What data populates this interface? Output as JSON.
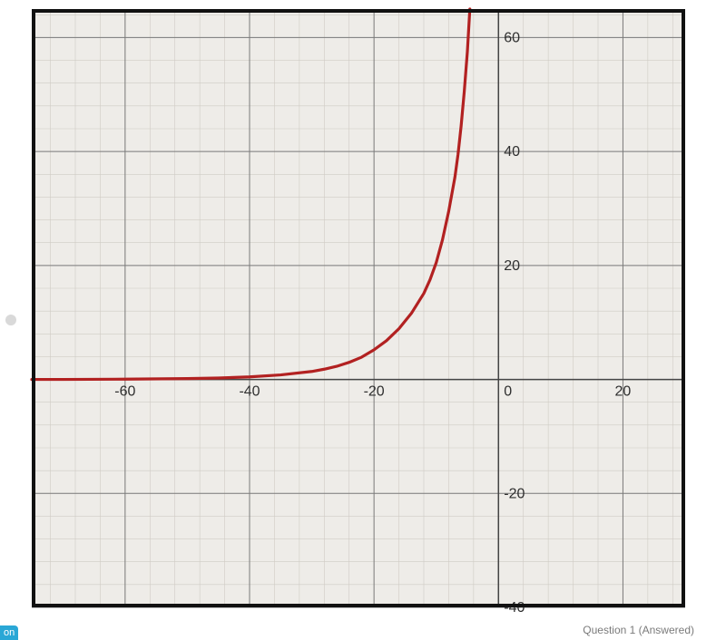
{
  "chart": {
    "type": "line",
    "background_color": "#eeece8",
    "plot_background": "#eeece8",
    "outer_border_color": "#111111",
    "outer_border_width": 4,
    "axis_color": "#444444",
    "axis_width": 1.5,
    "major_grid_color": "#7a7a7a",
    "major_grid_width": 1,
    "minor_grid_color": "#cfcbc4",
    "minor_grid_width": 0.6,
    "minor_step": 4,
    "xlim": [
      -75,
      30
    ],
    "ylim": [
      -40,
      65
    ],
    "x_major_step": 20,
    "y_major_step": 20,
    "x_tick_labels": [
      {
        "v": -60,
        "label": "-60"
      },
      {
        "v": -40,
        "label": "-40"
      },
      {
        "v": -20,
        "label": "-20"
      },
      {
        "v": 0,
        "label": "0"
      },
      {
        "v": 20,
        "label": "20"
      }
    ],
    "y_tick_labels": [
      {
        "v": 60,
        "label": "60"
      },
      {
        "v": 40,
        "label": "40"
      },
      {
        "v": 20,
        "label": "20"
      },
      {
        "v": -20,
        "label": "-20"
      },
      {
        "v": -40,
        "label": "-40"
      }
    ],
    "label_font_size": 16,
    "label_color": "#2f2f2f",
    "series": {
      "color": "#b22121",
      "stroke_width": 3.2,
      "points": [
        {
          "x": -75,
          "y": 0.0
        },
        {
          "x": -70,
          "y": 0.0
        },
        {
          "x": -60,
          "y": 0.05
        },
        {
          "x": -50,
          "y": 0.15
        },
        {
          "x": -45,
          "y": 0.25
        },
        {
          "x": -40,
          "y": 0.45
        },
        {
          "x": -35,
          "y": 0.8
        },
        {
          "x": -30,
          "y": 1.4
        },
        {
          "x": -28,
          "y": 1.8
        },
        {
          "x": -26,
          "y": 2.3
        },
        {
          "x": -24,
          "y": 3.0
        },
        {
          "x": -22,
          "y": 3.9
        },
        {
          "x": -20,
          "y": 5.2
        },
        {
          "x": -18,
          "y": 6.8
        },
        {
          "x": -16,
          "y": 8.9
        },
        {
          "x": -14,
          "y": 11.6
        },
        {
          "x": -12,
          "y": 15.1
        },
        {
          "x": -11,
          "y": 17.5
        },
        {
          "x": -10,
          "y": 20.5
        },
        {
          "x": -9,
          "y": 24.5
        },
        {
          "x": -8,
          "y": 29.5
        },
        {
          "x": -7,
          "y": 35.5
        },
        {
          "x": -6.5,
          "y": 39.5
        },
        {
          "x": -6,
          "y": 44.5
        },
        {
          "x": -5.5,
          "y": 50.5
        },
        {
          "x": -5,
          "y": 57.5
        },
        {
          "x": -4.6,
          "y": 65.0
        }
      ]
    }
  },
  "footer_text": "Question 1 (Answered)",
  "corner_badge": "on"
}
